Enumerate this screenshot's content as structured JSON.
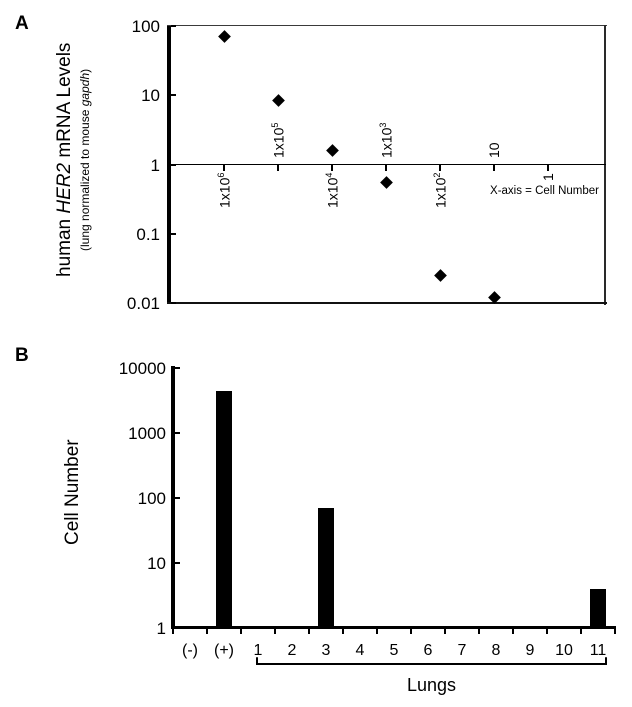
{
  "figure": {
    "panel_a": {
      "panel_label": "A",
      "y_title": {
        "pre": "human ",
        "italic": "HER2",
        "post": " mRNA Levels"
      },
      "y_subtitle": {
        "pre": "(lung normalized to mouse ",
        "italic": "gapdh",
        "post": ")"
      }
    },
    "panel_b": {
      "panel_label": "B",
      "y_title": "Cell Number",
      "bracket_label": "Lungs"
    }
  },
  "colors": {
    "ink": "#000000",
    "background": "#ffffff"
  },
  "chart_data": [
    {
      "type": "scatter",
      "panel": "A",
      "ylabel": "human HER2 mRNA Levels (lung normalized to mouse gapdh)",
      "xlabel": "X-axis = Cell Number",
      "yscale": "log",
      "ylim": [
        0.01,
        100
      ],
      "yticks": [
        100,
        10,
        1,
        0.1,
        0.01
      ],
      "ytick_labels": [
        "100",
        "10",
        "1",
        "0.1",
        "0.01"
      ],
      "x_categories": [
        "1x10^6",
        "1x10^5",
        "1x10^4",
        "1x10^3",
        "1x10^2",
        "10",
        "1"
      ],
      "x_label_side": [
        "below",
        "above",
        "below",
        "above",
        "below",
        "above",
        "below"
      ],
      "x_tick_label_rotation": 90,
      "marker": "diamond",
      "reference_line_y": 1,
      "grid": false,
      "points": [
        {
          "x": "1x10^6",
          "y": 70
        },
        {
          "x": "1x10^5",
          "y": 8.5
        },
        {
          "x": "1x10^4",
          "y": 1.6
        },
        {
          "x": "1x10^3",
          "y": 0.55
        },
        {
          "x": "1x10^2",
          "y": 0.025
        },
        {
          "x": "10",
          "y": 0.012
        }
      ]
    },
    {
      "type": "bar",
      "panel": "B",
      "ylabel": "Cell Number",
      "yscale": "log",
      "ylim": [
        1,
        10000
      ],
      "yticks": [
        10000,
        1000,
        100,
        10,
        1
      ],
      "ytick_labels": [
        "10000",
        "1000",
        "100",
        "10",
        "1"
      ],
      "categories": [
        "(-)",
        "(+)",
        "1",
        "2",
        "3",
        "4",
        "5",
        "6",
        "7",
        "8",
        "9",
        "10",
        "11"
      ],
      "values": [
        0,
        4500,
        0,
        0,
        70,
        0,
        0,
        0,
        0,
        0,
        0,
        0,
        4
      ],
      "bar_color": "#000000",
      "grid": false,
      "group_bracket": {
        "from": "1",
        "to": "11",
        "label": "Lungs"
      }
    }
  ]
}
